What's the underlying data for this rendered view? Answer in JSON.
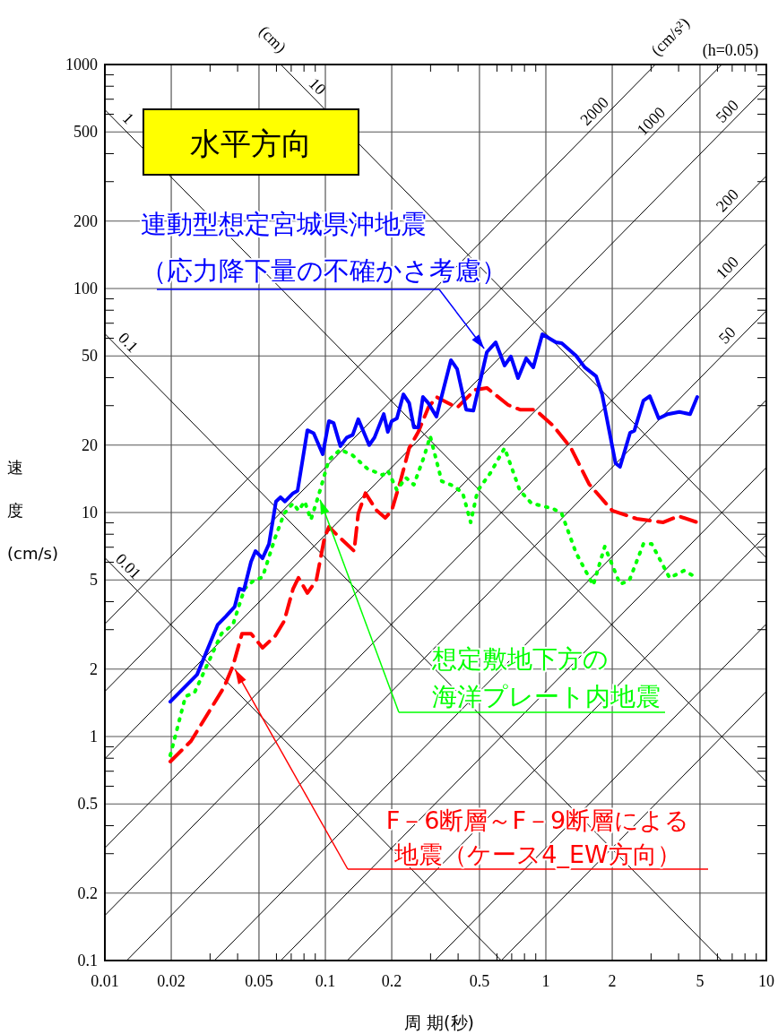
{
  "chart_data": {
    "type": "line",
    "title": "水平方向",
    "xlabel": "周 期(秒)",
    "ylabel": "速度(cm/s)",
    "log": "xy",
    "grid": true,
    "legend": false,
    "xlim": [
      0.01,
      10
    ],
    "ylim": [
      0.1,
      1000
    ],
    "xticks": [
      0.01,
      0.02,
      {
        "value": 0.03,
        "label": null
      },
      {
        "value": 0.04,
        "label": null
      },
      0.05,
      {
        "value": 0.06,
        "label": null
      },
      {
        "value": 0.07,
        "label": null
      },
      {
        "value": 0.08,
        "label": null
      },
      {
        "value": 0.09,
        "label": null
      },
      0.1,
      0.2,
      {
        "value": 0.3,
        "label": null
      },
      {
        "value": 0.4,
        "label": null
      },
      0.5,
      {
        "value": 0.6,
        "label": null
      },
      {
        "value": 0.7,
        "label": null
      },
      {
        "value": 0.8,
        "label": null
      },
      {
        "value": 0.9,
        "label": null
      },
      1,
      2,
      {
        "value": 3,
        "label": null
      },
      {
        "value": 4,
        "label": null
      },
      5,
      {
        "value": 6,
        "label": null
      },
      {
        "value": 7,
        "label": null
      },
      {
        "value": 8,
        "label": null
      },
      {
        "value": 9,
        "label": null
      },
      10
    ],
    "yticks": [
      0.1,
      0.2,
      {
        "value": 0.3,
        "label": null
      },
      {
        "value": 0.4,
        "label": null
      },
      0.5,
      {
        "value": 0.6,
        "label": null
      },
      {
        "value": 0.7,
        "label": null
      },
      {
        "value": 0.8,
        "label": null
      },
      {
        "value": 0.9,
        "label": null
      },
      1,
      2,
      {
        "value": 3,
        "label": null
      },
      {
        "value": 4,
        "label": null
      },
      5,
      {
        "value": 6,
        "label": null
      },
      {
        "value": 7,
        "label": null
      },
      {
        "value": 8,
        "label": null
      },
      {
        "value": 9,
        "label": null
      },
      10,
      20,
      {
        "value": 30,
        "label": null
      },
      {
        "value": 40,
        "label": null
      },
      50,
      {
        "value": 60,
        "label": null
      },
      {
        "value": 70,
        "label": null
      },
      {
        "value": 80,
        "label": null
      },
      {
        "value": 90,
        "label": null
      },
      100,
      200,
      {
        "value": 300,
        "label": null
      },
      {
        "value": 400,
        "label": null
      },
      500,
      {
        "value": 600,
        "label": null
      },
      {
        "value": 700,
        "label": null
      },
      {
        "value": 800,
        "label": null
      },
      {
        "value": 900,
        "label": null
      },
      1000
    ],
    "annotations": [
      "(cm)",
      "(cm/s²)",
      "(h=0.05)",
      {
        "text": "10",
        "x": 0.085,
        "y": 739
      },
      {
        "text": "1",
        "x": 0.0118,
        "y": 532
      },
      {
        "text": "0.1",
        "x": 0.0118,
        "y": 53.2
      },
      {
        "text": "0.01",
        "x": 0.0118,
        "y": 5.32
      },
      {
        "text": "2000",
        "x": 1.8,
        "y": 573
      },
      {
        "text": "1000",
        "x": 3.25,
        "y": 517
      },
      {
        "text": "500",
        "x": 7.2,
        "y": 573
      },
      {
        "text": "200",
        "x": 7.2,
        "y": 229
      },
      {
        "text": "100",
        "x": 7.2,
        "y": 114.6
      },
      {
        "text": "50",
        "x": 7.2,
        "y": 57.3
      }
    ],
    "series": [
      {
        "name": "連動型想定宮城県沖地震（応力降下量の不確かさ考慮）",
        "line_style": "solid",
        "color": "#0000ff",
        "x": [
          0.0198,
          0.0262,
          0.0325,
          0.0354,
          0.0388,
          0.0407,
          0.0427,
          0.046,
          0.0482,
          0.0519,
          0.0555,
          0.0597,
          0.0626,
          0.0656,
          0.0714,
          0.0748,
          0.0784,
          0.0829,
          0.0885,
          0.0973,
          0.1038,
          0.109,
          0.117,
          0.125,
          0.133,
          0.141,
          0.158,
          0.167,
          0.184,
          0.192,
          0.2,
          0.211,
          0.226,
          0.24,
          0.252,
          0.264,
          0.277,
          0.293,
          0.319,
          0.371,
          0.396,
          0.435,
          0.469,
          0.54,
          0.592,
          0.65,
          0.694,
          0.748,
          0.814,
          0.877,
          0.964,
          1.11,
          1.18,
          1.37,
          1.5,
          1.69,
          1.8,
          2.07,
          2.17,
          2.41,
          2.52,
          2.77,
          2.96,
          3.25,
          3.57,
          4.03,
          4.51,
          4.86
        ],
        "values": [
          1.43,
          1.89,
          3.16,
          3.44,
          3.8,
          4.57,
          4.5,
          6.03,
          6.73,
          6.25,
          7.24,
          11.2,
          11.7,
          11.2,
          12.2,
          12.5,
          16.6,
          23.3,
          22.6,
          18.2,
          25.6,
          25.1,
          19.8,
          21.6,
          22.2,
          26.1,
          20.0,
          21.6,
          27.5,
          22.9,
          25.6,
          26.3,
          33.7,
          30.8,
          24.0,
          24.0,
          32.8,
          30.8,
          26.8,
          47.9,
          43.7,
          28.8,
          28.5,
          52,
          57.5,
          45.3,
          49.7,
          39.8,
          48.8,
          44.5,
          62.5,
          57.5,
          57,
          50.1,
          44.5,
          40.6,
          33.7,
          16.6,
          16.0,
          22.7,
          23.2,
          31.6,
          33.1,
          26.3,
          27.5,
          28.1,
          27.5,
          32.8
        ]
      },
      {
        "name": "想定敷地下方の海洋プレート内地震",
        "line_style": "dotted",
        "color": "#00ff00",
        "x": [
          0.0198,
          0.0232,
          0.0255,
          0.0338,
          0.0381,
          0.043,
          0.0473,
          0.0519,
          0.0592,
          0.065,
          0.0714,
          0.0755,
          0.0806,
          0.086,
          0.0931,
          0.1038,
          0.117,
          0.133,
          0.155,
          0.182,
          0.192,
          0.211,
          0.232,
          0.252,
          0.28,
          0.299,
          0.337,
          0.384,
          0.42,
          0.456,
          0.49,
          0.56,
          0.65,
          0.763,
          0.861,
          1.08,
          1.18,
          1.37,
          1.64,
          1.85,
          2.17,
          2.39,
          2.77,
          3.02,
          3.64,
          4.23,
          4.86
        ],
        "values": [
          0.824,
          1.51,
          1.57,
          2.88,
          3.16,
          4.57,
          4.97,
          5.15,
          7.72,
          9.9,
          11.0,
          10.2,
          11.2,
          9.29,
          11.9,
          17.2,
          19.1,
          18.0,
          15.7,
          14.7,
          15.4,
          12.6,
          14.3,
          13.3,
          17.7,
          21.9,
          13.8,
          13.1,
          12.2,
          9.04,
          12.5,
          15.0,
          19.4,
          12.5,
          11.0,
          10.4,
          9.9,
          6.61,
          4.74,
          7.05,
          4.79,
          4.97,
          7.24,
          7.24,
          5.11,
          5.5,
          5.11
        ]
      },
      {
        "name": "F－6断層～F－9断層による地震（ケース4_EW方向）",
        "line_style": "dashed",
        "color": "#ff0000",
        "x": [
          0.0198,
          0.0246,
          0.0347,
          0.0381,
          0.0419,
          0.046,
          0.0519,
          0.0592,
          0.065,
          0.0714,
          0.0755,
          0.0829,
          0.091,
          0.0991,
          0.1038,
          0.114,
          0.135,
          0.141,
          0.152,
          0.171,
          0.187,
          0.2,
          0.219,
          0.24,
          0.264,
          0.293,
          0.319,
          0.396,
          0.477,
          0.54,
          0.675,
          0.763,
          0.894,
          1.08,
          1.3,
          1.57,
          2.0,
          2.58,
          3.41,
          4.0,
          4.86
        ],
        "values": [
          0.773,
          0.955,
          1.66,
          2.07,
          2.88,
          2.88,
          2.49,
          2.81,
          3.27,
          4.57,
          5.11,
          4.37,
          4.98,
          7.72,
          8.63,
          7.87,
          6.73,
          9.9,
          12.2,
          10.2,
          9.46,
          10.2,
          13.8,
          19.4,
          22.9,
          29.4,
          32.8,
          29.4,
          35.3,
          36,
          30.2,
          28.8,
          28.8,
          24.4,
          19.4,
          13.4,
          10.2,
          9.38,
          9.04,
          9.64,
          9.04
        ]
      },
      {
        "line_style": "solid",
        "color": "#000000",
        "x": [
          0.0628,
          10
        ],
        "values": [
          1000,
          6.28
        ]
      },
      {
        "line_style": "solid",
        "color": "#000000",
        "x": [
          0.01,
          10
        ],
        "values": [
          628,
          0.628
        ]
      },
      {
        "line_style": "solid",
        "color": "#000000",
        "x": [
          0.01,
          6.28
        ],
        "values": [
          62.8,
          0.1
        ]
      },
      {
        "line_style": "solid",
        "color": "#000000",
        "x": [
          0.01,
          0.628
        ],
        "values": [
          6.28,
          0.1
        ]
      },
      {
        "line_style": "solid",
        "color": "#000000",
        "x": [
          0.01,
          3.14
        ],
        "values": [
          3.18,
          1000
        ]
      },
      {
        "line_style": "solid",
        "color": "#000000",
        "x": [
          0.01,
          6.28
        ],
        "values": [
          1.59,
          1000
        ]
      },
      {
        "line_style": "solid",
        "color": "#000000",
        "x": [
          0.01,
          10
        ],
        "values": [
          0.796,
          796
        ]
      },
      {
        "line_style": "solid",
        "color": "#000000",
        "x": [
          0.01,
          10
        ],
        "values": [
          0.318,
          318
        ]
      },
      {
        "line_style": "solid",
        "color": "#000000",
        "x": [
          0.01,
          10
        ],
        "values": [
          0.159,
          159
        ]
      },
      {
        "line_style": "solid",
        "color": "#000000",
        "x": [
          0.01257,
          10
        ],
        "values": [
          0.1,
          79.6
        ]
      },
      {
        "line_style": "solid",
        "color": "#000000",
        "x": [
          0.0314,
          10
        ],
        "values": [
          0.1,
          31.8
        ]
      },
      {
        "line_style": "solid",
        "color": "#000000",
        "x": [
          0.0628,
          10
        ],
        "values": [
          0.1,
          15.9
        ]
      },
      {
        "line_style": "solid",
        "color": "#000000",
        "x": [
          0.1257,
          10
        ],
        "values": [
          0.1,
          7.96
        ]
      },
      {
        "line_style": "solid",
        "color": "#000000",
        "x": [
          0.314,
          10
        ],
        "values": [
          0.1,
          3.18
        ]
      },
      {
        "line_style": "solid",
        "color": "#000000",
        "x": [
          0.628,
          10
        ],
        "values": [
          0.1,
          1.59
        ]
      }
    ]
  }
}
